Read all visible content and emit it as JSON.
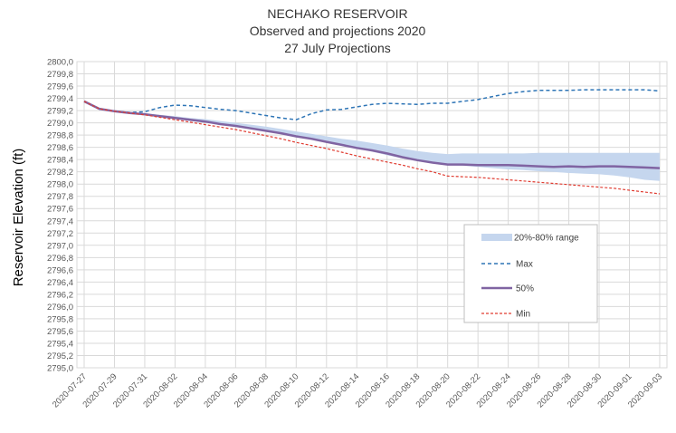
{
  "chart_data": {
    "type": "line",
    "title": [
      "NECHAKO RESERVOIR",
      "Observed and projections 2020",
      "27 July Projections"
    ],
    "ylabel": "Reservoir Elevation (ft)",
    "xlabel": "",
    "ylim": [
      2795.0,
      2800.0
    ],
    "ytick_step": 0.2,
    "y_tick_labels": [
      "2795,0",
      "2795,2",
      "2795,4",
      "2795,6",
      "2795,8",
      "2796,0",
      "2796,2",
      "2796,4",
      "2796,6",
      "2796,8",
      "2797,0",
      "2797,2",
      "2797,4",
      "2797,6",
      "2797,8",
      "2798,0",
      "2798,2",
      "2798,4",
      "2798,6",
      "2798,8",
      "2799,0",
      "2799,2",
      "2799,4",
      "2799,6",
      "2799,8",
      "2800,0"
    ],
    "x_tick_labels": [
      "2020-07-27",
      "2020-07-29",
      "2020-07-31",
      "2020-08-02",
      "2020-08-04",
      "2020-08-06",
      "2020-08-08",
      "2020-08-10",
      "2020-08-12",
      "2020-08-14",
      "2020-08-16",
      "2020-08-18",
      "2020-08-20",
      "2020-08-22",
      "2020-08-24",
      "2020-08-26",
      "2020-08-28",
      "2020-08-30",
      "2020-09-01",
      "2020-09-03"
    ],
    "x_categories_all": [
      "2020-07-27",
      "2020-07-28",
      "2020-07-29",
      "2020-07-30",
      "2020-07-31",
      "2020-08-01",
      "2020-08-02",
      "2020-08-03",
      "2020-08-04",
      "2020-08-05",
      "2020-08-06",
      "2020-08-07",
      "2020-08-08",
      "2020-08-09",
      "2020-08-10",
      "2020-08-11",
      "2020-08-12",
      "2020-08-13",
      "2020-08-14",
      "2020-08-15",
      "2020-08-16",
      "2020-08-17",
      "2020-08-18",
      "2020-08-19",
      "2020-08-20",
      "2020-08-21",
      "2020-08-22",
      "2020-08-23",
      "2020-08-24",
      "2020-08-25",
      "2020-08-26",
      "2020-08-27",
      "2020-08-28",
      "2020-08-29",
      "2020-08-30",
      "2020-08-31",
      "2020-09-01",
      "2020-09-02",
      "2020-09-03"
    ],
    "grid": true,
    "legend_position": "center-right",
    "series": [
      {
        "name": "20%-80% range",
        "kind": "band",
        "color": "#c5d6ee",
        "lower": [
          2799.35,
          2799.23,
          2799.2,
          2799.17,
          2799.15,
          2799.12,
          2799.09,
          2799.05,
          2799.02,
          2798.99,
          2798.95,
          2798.92,
          2798.88,
          2798.84,
          2798.79,
          2798.75,
          2798.69,
          2798.64,
          2798.58,
          2798.53,
          2798.47,
          2798.42,
          2798.38,
          2798.34,
          2798.31,
          2798.3,
          2798.28,
          2798.26,
          2798.24,
          2798.23,
          2798.21,
          2798.2,
          2798.18,
          2798.17,
          2798.16,
          2798.14,
          2798.11,
          2798.07,
          2798.05
        ],
        "upper": [
          2799.35,
          2799.23,
          2799.2,
          2799.17,
          2799.15,
          2799.13,
          2799.11,
          2799.08,
          2799.06,
          2799.03,
          2799.0,
          2798.97,
          2798.94,
          2798.9,
          2798.86,
          2798.82,
          2798.78,
          2798.74,
          2798.71,
          2798.67,
          2798.63,
          2798.58,
          2798.54,
          2798.51,
          2798.49,
          2798.5,
          2798.5,
          2798.5,
          2798.5,
          2798.5,
          2798.51,
          2798.51,
          2798.51,
          2798.51,
          2798.51,
          2798.51,
          2798.51,
          2798.51,
          2798.51
        ]
      },
      {
        "name": "Max",
        "kind": "line",
        "color": "#2e75b6",
        "dash": "4,3",
        "width": 1.5,
        "values": [
          2799.35,
          2799.23,
          2799.19,
          2799.17,
          2799.18,
          2799.25,
          2799.29,
          2799.28,
          2799.25,
          2799.22,
          2799.2,
          2799.16,
          2799.12,
          2799.08,
          2799.05,
          2799.15,
          2799.21,
          2799.22,
          2799.26,
          2799.3,
          2799.32,
          2799.31,
          2799.3,
          2799.32,
          2799.32,
          2799.35,
          2799.38,
          2799.43,
          2799.48,
          2799.51,
          2799.53,
          2799.53,
          2799.53,
          2799.54,
          2799.54,
          2799.54,
          2799.54,
          2799.54,
          2799.52
        ]
      },
      {
        "name": "50%",
        "kind": "line",
        "color": "#8064a2",
        "dash": "",
        "width": 2.5,
        "values": [
          2799.35,
          2799.23,
          2799.19,
          2799.16,
          2799.14,
          2799.11,
          2799.08,
          2799.05,
          2799.02,
          2798.98,
          2798.95,
          2798.91,
          2798.87,
          2798.83,
          2798.78,
          2798.74,
          2798.69,
          2798.64,
          2798.59,
          2798.55,
          2798.5,
          2798.44,
          2798.39,
          2798.35,
          2798.32,
          2798.32,
          2798.31,
          2798.31,
          2798.31,
          2798.3,
          2798.29,
          2798.28,
          2798.29,
          2798.28,
          2798.29,
          2798.29,
          2798.28,
          2798.27,
          2798.26
        ]
      },
      {
        "name": "Min",
        "kind": "line",
        "color": "#e03c31",
        "dash": "3,2",
        "width": 1.2,
        "values": [
          2799.35,
          2799.23,
          2799.19,
          2799.16,
          2799.13,
          2799.09,
          2799.05,
          2799.01,
          2798.97,
          2798.93,
          2798.89,
          2798.84,
          2798.79,
          2798.74,
          2798.68,
          2798.63,
          2798.58,
          2798.52,
          2798.46,
          2798.41,
          2798.36,
          2798.31,
          2798.25,
          2798.2,
          2798.13,
          2798.12,
          2798.11,
          2798.09,
          2798.07,
          2798.05,
          2798.03,
          2798.01,
          2797.99,
          2797.97,
          2797.95,
          2797.93,
          2797.9,
          2797.87,
          2797.84
        ]
      }
    ]
  }
}
